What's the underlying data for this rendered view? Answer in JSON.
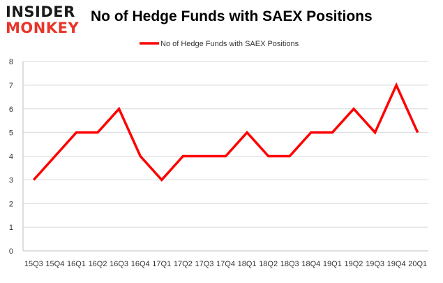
{
  "logo": {
    "line1": "INSIDER",
    "line2": "MONKEY"
  },
  "chart_data": {
    "type": "line",
    "title": "No of Hedge Funds with SAEX Positions",
    "categories": [
      "15Q3",
      "15Q4",
      "16Q1",
      "16Q2",
      "16Q3",
      "16Q4",
      "17Q1",
      "17Q2",
      "17Q3",
      "17Q4",
      "18Q1",
      "18Q2",
      "18Q3",
      "18Q4",
      "19Q1",
      "19Q2",
      "19Q3",
      "19Q4",
      "20Q1"
    ],
    "series": [
      {
        "name": "No of Hedge Funds with SAEX Positions",
        "values": [
          3,
          4,
          5,
          5,
          6,
          4,
          3,
          4,
          4,
          4,
          5,
          4,
          4,
          5,
          5,
          6,
          5,
          7,
          5
        ],
        "color": "#ff0000"
      }
    ],
    "ylim": [
      0,
      8
    ],
    "yticks": [
      0,
      1,
      2,
      3,
      4,
      5,
      6,
      7,
      8
    ],
    "xlabel": "",
    "ylabel": "",
    "grid": true,
    "legend": "top-center"
  }
}
